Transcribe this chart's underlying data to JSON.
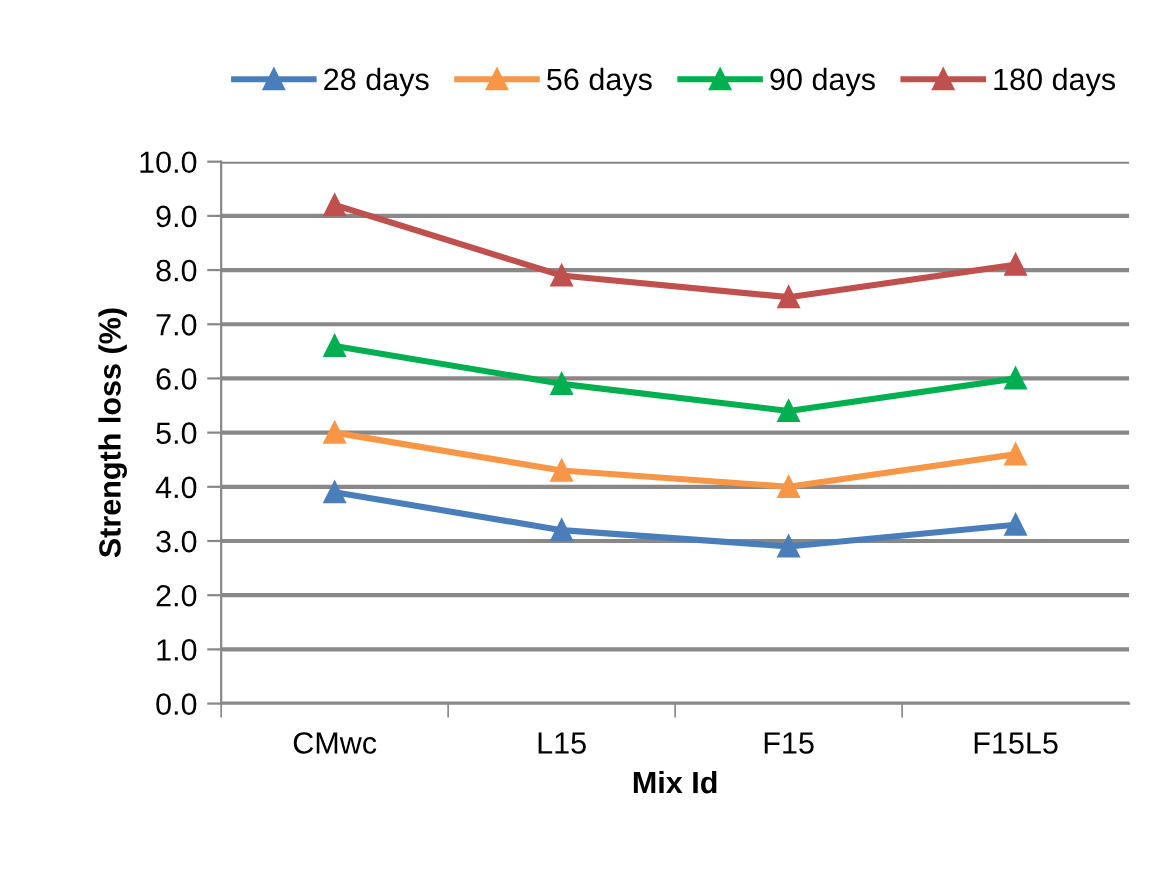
{
  "chart_data": {
    "type": "line",
    "xlabel": "Mix Id",
    "ylabel": "Strength loss (%)",
    "categories": [
      "CMwc",
      "L15",
      "F15",
      "F15L5"
    ],
    "series": [
      {
        "name": "28 days",
        "color": "#4a7ebb",
        "values": [
          3.9,
          3.2,
          2.9,
          3.3
        ]
      },
      {
        "name": "56 days",
        "color": "#f79646",
        "values": [
          5.0,
          4.3,
          4.0,
          4.6
        ]
      },
      {
        "name": "90 days",
        "color": "#00b050",
        "values": [
          6.6,
          5.9,
          5.4,
          6.0
        ]
      },
      {
        "name": "180 days",
        "color": "#c0504d",
        "values": [
          9.2,
          7.9,
          7.5,
          8.1
        ]
      }
    ],
    "ylim": [
      0,
      10
    ],
    "yticks": [
      {
        "value": 0,
        "label": "0.0"
      },
      {
        "value": 1,
        "label": "1.0"
      },
      {
        "value": 2,
        "label": "2.0"
      },
      {
        "value": 3,
        "label": "3.0"
      },
      {
        "value": 4,
        "label": "4.0"
      },
      {
        "value": 5,
        "label": "5.0"
      },
      {
        "value": 6,
        "label": "6.0"
      },
      {
        "value": 7,
        "label": "7.0"
      },
      {
        "value": 8,
        "label": "8.0"
      },
      {
        "value": 9,
        "label": "9.0"
      },
      {
        "value": 10,
        "label": "10.0"
      }
    ],
    "grid": "y",
    "legend": "top",
    "marker": "triangle",
    "line_style": "solid"
  }
}
